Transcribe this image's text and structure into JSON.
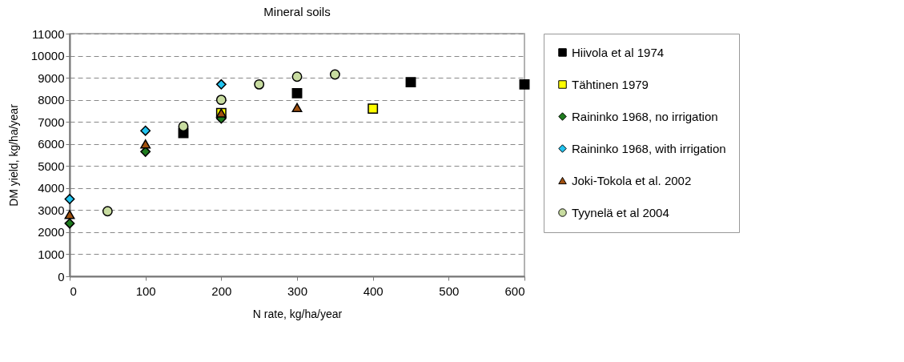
{
  "chart_data": {
    "type": "scatter",
    "title": "Mineral soils",
    "xlabel": "N rate, kg/ha/year",
    "ylabel": "DM yield, kg/ha/year",
    "xlim": [
      0,
      600
    ],
    "xticks": [
      0,
      100,
      200,
      300,
      400,
      500,
      600
    ],
    "ylim": [
      0,
      11000
    ],
    "yticks": [
      0,
      1000,
      2000,
      3000,
      4000,
      5000,
      6000,
      7000,
      8000,
      9000,
      10000,
      11000
    ],
    "grid": "y",
    "legend": "right",
    "series": [
      {
        "name": "Hiivola et al 1974",
        "color": "#000000",
        "marker": "square",
        "x": [
          150,
          300,
          450,
          600
        ],
        "values": [
          6500,
          8300,
          8800,
          8700
        ]
      },
      {
        "name": "Tähtinen 1979",
        "color": "#ffff00",
        "marker": "square",
        "x": [
          200,
          400
        ],
        "values": [
          7400,
          7600
        ]
      },
      {
        "name": "Raininko 1968, no irrigation",
        "color": "#1e7b1e",
        "marker": "diamond",
        "x": [
          0,
          100,
          200
        ],
        "values": [
          2400,
          5650,
          7150
        ]
      },
      {
        "name": "Raininko 1968, with irrigation",
        "color": "#22c4f0",
        "marker": "diamond",
        "x": [
          0,
          100,
          200
        ],
        "values": [
          3500,
          6600,
          8700
        ]
      },
      {
        "name": "Joki-Tokola et al. 2002",
        "color": "#a0500f",
        "marker": "triangle",
        "x": [
          0,
          100,
          200,
          300
        ],
        "values": [
          2800,
          6000,
          7400,
          7650
        ]
      },
      {
        "name": "Tyynelä et al 2004",
        "color": "#c8dca0",
        "marker": "circle",
        "x": [
          50,
          150,
          200,
          250,
          300,
          350
        ],
        "values": [
          2950,
          6800,
          8000,
          8700,
          9050,
          9150
        ]
      }
    ]
  }
}
